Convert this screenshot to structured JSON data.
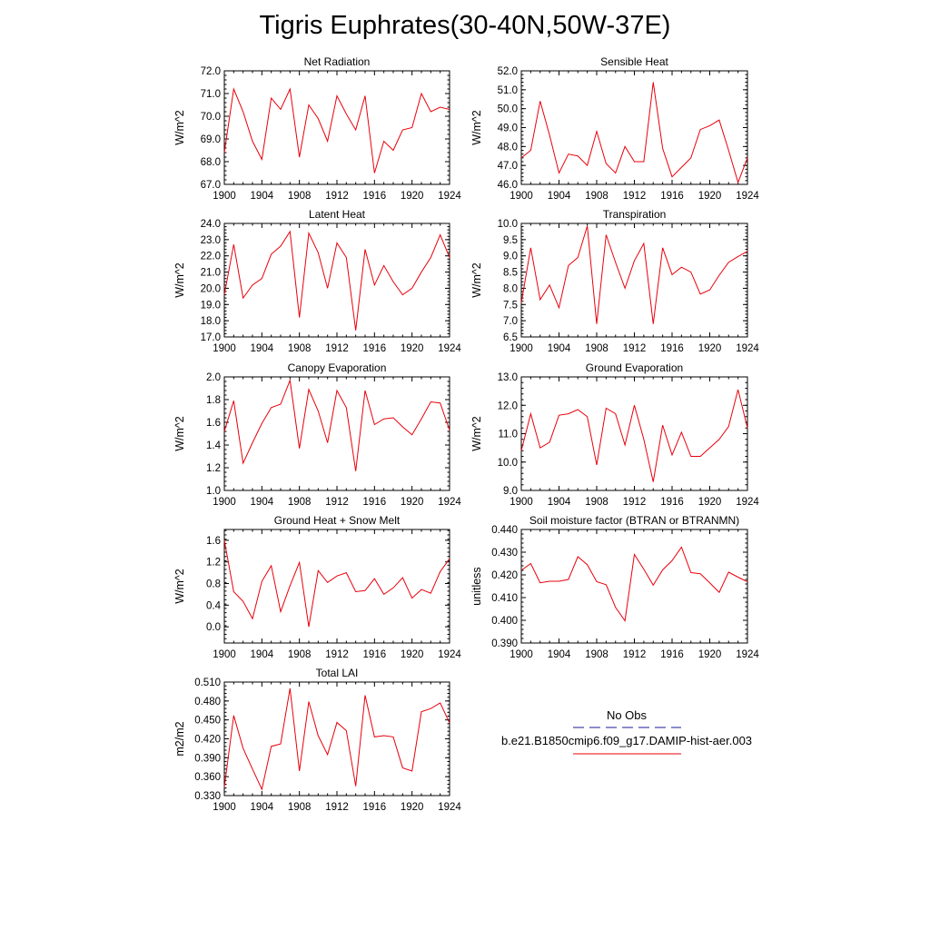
{
  "title": "Tigris Euphrates(30-40N,50W-37E)",
  "chart_data": [
    {
      "type": "line",
      "title": "Net Radiation",
      "ylabel": "W/m^2",
      "xlim": [
        1900,
        1924
      ],
      "ylim": [
        67.0,
        72.0
      ],
      "x_ticks": [
        "1900",
        "1904",
        "1908",
        "1912",
        "1916",
        "1920",
        "1924"
      ],
      "y_ticks": [
        "67.0",
        "68.0",
        "69.0",
        "70.0",
        "71.0",
        "72.0"
      ],
      "x": [
        1900,
        1901,
        1902,
        1903,
        1904,
        1905,
        1906,
        1907,
        1908,
        1909,
        1910,
        1911,
        1912,
        1913,
        1914,
        1915,
        1916,
        1917,
        1918,
        1919,
        1920,
        1921,
        1922,
        1923,
        1924
      ],
      "series": [
        {
          "color": "#e8000b",
          "values": [
            68.4,
            71.2,
            70.2,
            68.9,
            68.1,
            70.8,
            70.3,
            71.2,
            68.2,
            70.5,
            69.9,
            68.9,
            70.9,
            70.1,
            69.4,
            70.9,
            67.5,
            68.9,
            68.5,
            69.4,
            69.5,
            71.0,
            70.2,
            70.4,
            70.3
          ]
        }
      ]
    },
    {
      "type": "line",
      "title": "Sensible Heat",
      "ylabel": "W/m^2",
      "xlim": [
        1900,
        1924
      ],
      "ylim": [
        46.0,
        52.0
      ],
      "x_ticks": [
        "1900",
        "1904",
        "1908",
        "1912",
        "1916",
        "1920",
        "1924"
      ],
      "y_ticks": [
        "46.0",
        "47.0",
        "48.0",
        "49.0",
        "50.0",
        "51.0",
        "52.0"
      ],
      "x": [
        1900,
        1901,
        1902,
        1903,
        1904,
        1905,
        1906,
        1907,
        1908,
        1909,
        1910,
        1911,
        1912,
        1913,
        1914,
        1915,
        1916,
        1917,
        1918,
        1919,
        1920,
        1921,
        1922,
        1923,
        1924
      ],
      "series": [
        {
          "color": "#e8000b",
          "values": [
            47.4,
            47.8,
            50.4,
            48.6,
            46.6,
            47.6,
            47.5,
            47.0,
            48.8,
            47.1,
            46.6,
            48.0,
            47.2,
            47.2,
            51.4,
            47.9,
            46.4,
            46.9,
            47.4,
            48.9,
            49.1,
            49.4,
            47.8,
            46.1,
            47.4
          ]
        }
      ]
    },
    {
      "type": "line",
      "title": "Latent Heat",
      "ylabel": "W/m^2",
      "xlim": [
        1900,
        1924
      ],
      "ylim": [
        17.0,
        24.0
      ],
      "x_ticks": [
        "1900",
        "1904",
        "1908",
        "1912",
        "1916",
        "1920",
        "1924"
      ],
      "y_ticks": [
        "17.0",
        "18.0",
        "19.0",
        "20.0",
        "21.0",
        "22.0",
        "23.0",
        "24.0"
      ],
      "x": [
        1900,
        1901,
        1902,
        1903,
        1904,
        1905,
        1906,
        1907,
        1908,
        1909,
        1910,
        1911,
        1912,
        1913,
        1914,
        1915,
        1916,
        1917,
        1918,
        1919,
        1920,
        1921,
        1922,
        1923,
        1924
      ],
      "series": [
        {
          "color": "#e8000b",
          "values": [
            19.6,
            22.7,
            19.4,
            20.2,
            20.6,
            22.1,
            22.6,
            23.5,
            18.2,
            23.4,
            22.2,
            20.0,
            22.8,
            21.9,
            17.4,
            22.4,
            20.2,
            21.4,
            20.4,
            19.6,
            20.0,
            21.0,
            21.9,
            23.3,
            21.9
          ]
        }
      ]
    },
    {
      "type": "line",
      "title": "Transpiration",
      "ylabel": "W/m^2",
      "xlim": [
        1900,
        1924
      ],
      "ylim": [
        6.5,
        10.0
      ],
      "x_ticks": [
        "1900",
        "1904",
        "1908",
        "1912",
        "1916",
        "1920",
        "1924"
      ],
      "y_ticks": [
        "6.5",
        "7.0",
        "7.5",
        "8.0",
        "8.5",
        "9.0",
        "9.5",
        "10.0"
      ],
      "x": [
        1900,
        1901,
        1902,
        1903,
        1904,
        1905,
        1906,
        1907,
        1908,
        1909,
        1910,
        1911,
        1912,
        1913,
        1914,
        1915,
        1916,
        1917,
        1918,
        1919,
        1920,
        1921,
        1922,
        1923,
        1924
      ],
      "series": [
        {
          "color": "#e8000b",
          "values": [
            7.55,
            9.25,
            7.65,
            8.1,
            7.4,
            8.7,
            8.95,
            9.92,
            6.9,
            9.65,
            8.8,
            8.0,
            8.85,
            9.38,
            6.9,
            9.25,
            8.42,
            8.65,
            8.5,
            7.82,
            7.95,
            8.4,
            8.8,
            8.98,
            9.14
          ]
        }
      ]
    },
    {
      "type": "line",
      "title": "Canopy Evaporation",
      "ylabel": "W/m^2",
      "xlim": [
        1900,
        1924
      ],
      "ylim": [
        1.0,
        2.0
      ],
      "x_ticks": [
        "1900",
        "1904",
        "1908",
        "1912",
        "1916",
        "1920",
        "1924"
      ],
      "y_ticks": [
        "1.0",
        "1.2",
        "1.4",
        "1.6",
        "1.8",
        "2.0"
      ],
      "x": [
        1900,
        1901,
        1902,
        1903,
        1904,
        1905,
        1906,
        1907,
        1908,
        1909,
        1910,
        1911,
        1912,
        1913,
        1914,
        1915,
        1916,
        1917,
        1918,
        1919,
        1920,
        1921,
        1922,
        1923,
        1924
      ],
      "series": [
        {
          "color": "#e8000b",
          "values": [
            1.52,
            1.79,
            1.24,
            1.42,
            1.59,
            1.73,
            1.76,
            1.97,
            1.37,
            1.89,
            1.7,
            1.42,
            1.88,
            1.73,
            1.17,
            1.88,
            1.58,
            1.63,
            1.64,
            1.56,
            1.49,
            1.63,
            1.78,
            1.77,
            1.53
          ]
        }
      ]
    },
    {
      "type": "line",
      "title": "Ground Evaporation",
      "ylabel": "W/m^2",
      "xlim": [
        1900,
        1924
      ],
      "ylim": [
        9.0,
        13.0
      ],
      "x_ticks": [
        "1900",
        "1904",
        "1908",
        "1912",
        "1916",
        "1920",
        "1924"
      ],
      "y_ticks": [
        "9.0",
        "10.0",
        "11.0",
        "12.0",
        "13.0"
      ],
      "x": [
        1900,
        1901,
        1902,
        1903,
        1904,
        1905,
        1906,
        1907,
        1908,
        1909,
        1910,
        1911,
        1912,
        1913,
        1914,
        1915,
        1916,
        1917,
        1918,
        1919,
        1920,
        1921,
        1922,
        1923,
        1924
      ],
      "series": [
        {
          "color": "#e8000b",
          "values": [
            10.4,
            11.7,
            10.5,
            10.7,
            11.65,
            11.7,
            11.85,
            11.6,
            9.9,
            11.9,
            11.7,
            10.6,
            12.0,
            10.8,
            9.3,
            11.3,
            10.25,
            11.05,
            10.2,
            10.2,
            10.5,
            10.8,
            11.25,
            12.55,
            11.2
          ]
        }
      ]
    },
    {
      "type": "line",
      "title": "Ground Heat + Snow Melt",
      "ylabel": "W/m^2",
      "xlim": [
        1900,
        1924
      ],
      "ylim": [
        -0.3,
        1.8
      ],
      "x_ticks": [
        "1900",
        "1904",
        "1908",
        "1912",
        "1916",
        "1920",
        "1924"
      ],
      "y_ticks": [
        "0.0",
        "0.4",
        "0.8",
        "1.2",
        "1.6"
      ],
      "y_tick_values": [
        0.0,
        0.4,
        0.8,
        1.2,
        1.6
      ],
      "x": [
        1900,
        1901,
        1902,
        1903,
        1904,
        1905,
        1906,
        1907,
        1908,
        1909,
        1910,
        1911,
        1912,
        1913,
        1914,
        1915,
        1916,
        1917,
        1918,
        1919,
        1920,
        1921,
        1922,
        1923,
        1924
      ],
      "series": [
        {
          "color": "#e8000b",
          "values": [
            1.6,
            0.65,
            0.47,
            0.15,
            0.84,
            1.13,
            0.28,
            0.76,
            1.19,
            0.0,
            1.04,
            0.82,
            0.94,
            1.0,
            0.65,
            0.67,
            0.89,
            0.6,
            0.72,
            0.91,
            0.53,
            0.69,
            0.62,
            1.02,
            1.26
          ]
        }
      ]
    },
    {
      "type": "line",
      "title": "Soil moisture factor (BTRAN or BTRANMN)",
      "ylabel": "unitless",
      "xlim": [
        1900,
        1924
      ],
      "ylim": [
        0.39,
        0.44
      ],
      "x_ticks": [
        "1900",
        "1904",
        "1908",
        "1912",
        "1916",
        "1920",
        "1924"
      ],
      "y_ticks": [
        "0.390",
        "0.400",
        "0.410",
        "0.420",
        "0.430",
        "0.440"
      ],
      "x": [
        1900,
        1901,
        1902,
        1903,
        1904,
        1905,
        1906,
        1907,
        1908,
        1909,
        1910,
        1911,
        1912,
        1913,
        1914,
        1915,
        1916,
        1917,
        1918,
        1919,
        1920,
        1921,
        1922,
        1923,
        1924
      ],
      "series": [
        {
          "color": "#e8000b",
          "values": [
            0.422,
            0.425,
            0.4165,
            0.4172,
            0.4172,
            0.418,
            0.428,
            0.4245,
            0.417,
            0.4157,
            0.4057,
            0.3998,
            0.429,
            0.4225,
            0.4155,
            0.4222,
            0.4263,
            0.4322,
            0.421,
            0.4205,
            0.4165,
            0.4123,
            0.4212,
            0.419,
            0.417
          ]
        }
      ]
    },
    {
      "type": "line",
      "title": "Total LAI",
      "ylabel": "m2/m2",
      "xlim": [
        1900,
        1924
      ],
      "ylim": [
        0.33,
        0.51
      ],
      "x_ticks": [
        "1900",
        "1904",
        "1908",
        "1912",
        "1916",
        "1920",
        "1924"
      ],
      "y_ticks": [
        "0.330",
        "0.360",
        "0.390",
        "0.420",
        "0.450",
        "0.480",
        "0.510"
      ],
      "x": [
        1900,
        1901,
        1902,
        1903,
        1904,
        1905,
        1906,
        1907,
        1908,
        1909,
        1910,
        1911,
        1912,
        1913,
        1914,
        1915,
        1916,
        1917,
        1918,
        1919,
        1920,
        1921,
        1922,
        1923,
        1924
      ],
      "series": [
        {
          "color": "#e8000b",
          "values": [
            0.343,
            0.457,
            0.405,
            0.372,
            0.34,
            0.408,
            0.412,
            0.5,
            0.369,
            0.479,
            0.425,
            0.395,
            0.446,
            0.433,
            0.345,
            0.489,
            0.423,
            0.425,
            0.423,
            0.374,
            0.369,
            0.463,
            0.468,
            0.477,
            0.445
          ]
        }
      ]
    }
  ],
  "legend": {
    "obs_label": "No Obs",
    "obs_color": "#1a1a99",
    "model_label": "b.e21.B1850cmip6.f09_g17.DAMIP-hist-aer.003",
    "model_color": "#e8000b"
  }
}
